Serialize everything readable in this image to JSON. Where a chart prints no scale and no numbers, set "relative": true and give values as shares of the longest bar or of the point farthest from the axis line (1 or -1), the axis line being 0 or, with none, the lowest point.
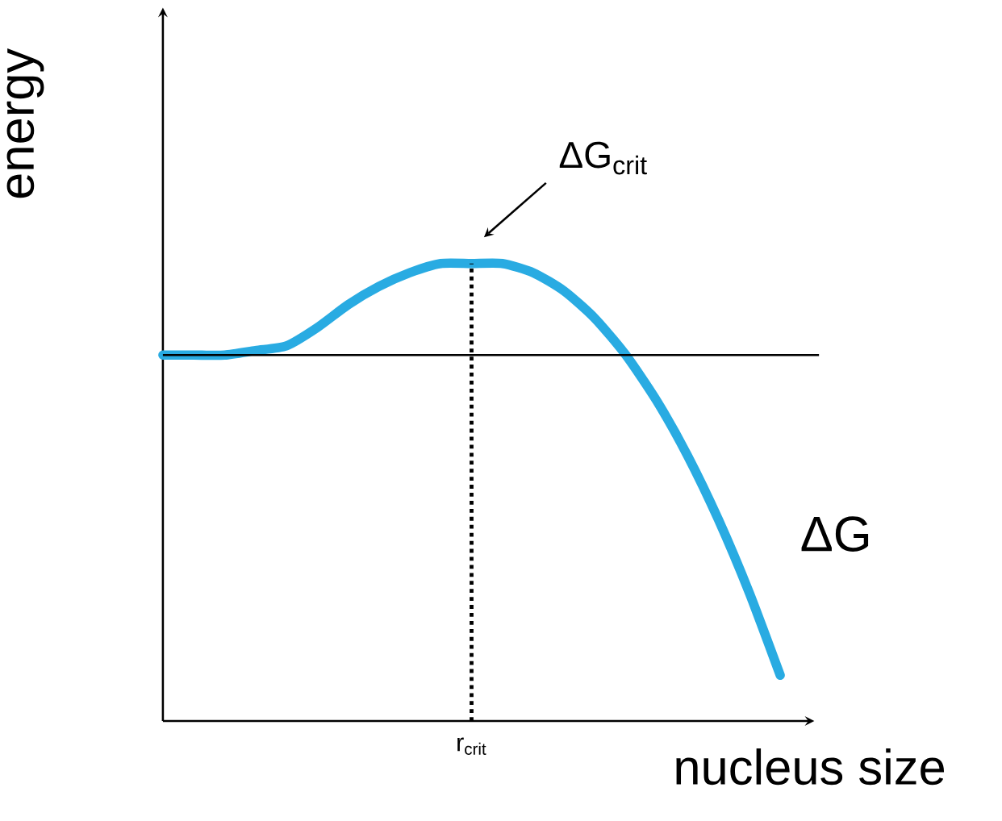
{
  "chart_data": {
    "type": "line",
    "relative": true,
    "xlabel": "nucleus size",
    "ylabel": "energy",
    "categories": [
      null,
      null,
      null,
      null,
      null,
      null,
      null,
      null,
      null,
      null,
      null,
      null,
      null,
      null,
      null,
      null,
      null,
      null,
      null,
      null,
      null
    ],
    "series": [
      {
        "name": "ΔG",
        "color": "#29abe2",
        "values": [
          0.8,
          0.8,
          0.8,
          0.81,
          0.82,
          0.86,
          0.91,
          0.95,
          0.98,
          1.0,
          1.0,
          1.0,
          0.98,
          0.94,
          0.88,
          0.8,
          0.7,
          0.58,
          0.44,
          0.28,
          0.1
        ]
      }
    ],
    "ref_lines": [
      {
        "axis": "y",
        "value": 0.8,
        "color": "#000000",
        "line_style": "solid"
      }
    ],
    "annotations": [
      "ΔG$_{crit}$",
      "r$_{crit}$"
    ]
  }
}
